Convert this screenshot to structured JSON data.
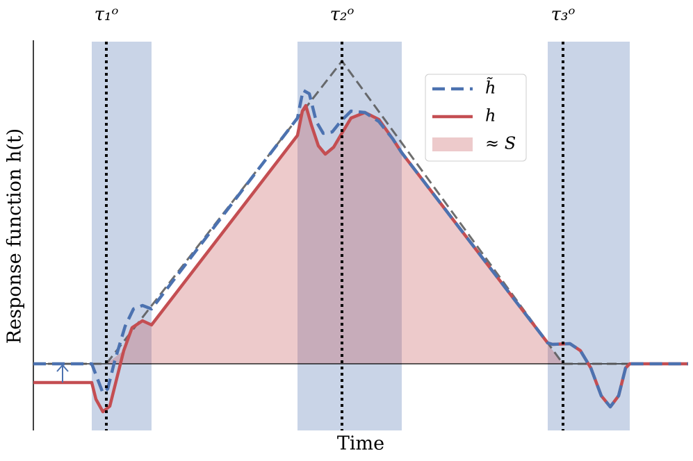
{
  "chart_data": {
    "type": "line",
    "ylabel": "Response function h(t)",
    "xlabel": "Time",
    "xlim": [
      0,
      942
    ],
    "ylim": [
      -96,
      464
    ],
    "band_color": "#4c72b0",
    "bands": [
      [
        84,
        170
      ],
      [
        380,
        530
      ],
      [
        740,
        858
      ]
    ],
    "markers": [
      {
        "x": 105,
        "label": "τ₁ᵒ"
      },
      {
        "x": 444,
        "label": "τ₂ᵒ"
      },
      {
        "x": 762,
        "label": "τ₃ᵒ"
      }
    ],
    "reference": {
      "color": "#555555",
      "x": [
        0,
        105,
        444,
        762,
        942
      ],
      "values": [
        0,
        0,
        436,
        0,
        0
      ]
    },
    "legend": "upper right",
    "series": [
      {
        "name": "h̃",
        "color": "#4c72b0",
        "style": "dashed",
        "x": [
          0,
          84,
          92,
          100,
          107,
          117,
          132,
          144,
          157,
          170,
          380,
          388,
          397,
          407,
          417,
          430,
          442,
          457,
          477,
          497,
          517,
          530,
          740,
          747,
          772,
          787,
          802,
          817,
          830,
          842,
          852,
          858,
          942
        ],
        "values": [
          0,
          0,
          -21,
          -42,
          -36,
          4,
          54,
          79,
          84,
          79,
          354,
          394,
          389,
          349,
          332,
          334,
          349,
          364,
          362,
          349,
          324,
          304,
          30,
          28,
          29,
          19,
          -6,
          -46,
          -62,
          -46,
          -6,
          0,
          0
        ]
      },
      {
        "name": "h",
        "color": "#c44e52",
        "style": "solid",
        "x": [
          0,
          84,
          90,
          100,
          110,
          120,
          130,
          142,
          157,
          170,
          380,
          387,
          392,
          400,
          410,
          420,
          432,
          442,
          457,
          477,
          497,
          517,
          530,
          740,
          747,
          772,
          787,
          802,
          817,
          830,
          842,
          852,
          858,
          942
        ],
        "values": [
          -27,
          -27,
          -51,
          -69,
          -61,
          -21,
          19,
          52,
          62,
          56,
          329,
          364,
          372,
          344,
          314,
          302,
          312,
          329,
          354,
          362,
          352,
          324,
          304,
          30,
          28,
          29,
          19,
          -6,
          -46,
          -62,
          -46,
          -6,
          0,
          0
        ]
      },
      {
        "name": "≈ S",
        "color": "#c44e52",
        "style": "area",
        "x": [
          105,
          130,
          142,
          157,
          170,
          380,
          387,
          392,
          400,
          410,
          420,
          432,
          442,
          457,
          477,
          497,
          517,
          530,
          762
        ],
        "values": [
          0,
          19,
          52,
          62,
          56,
          329,
          364,
          372,
          344,
          314,
          302,
          312,
          329,
          354,
          362,
          352,
          324,
          304,
          0
        ]
      }
    ]
  }
}
